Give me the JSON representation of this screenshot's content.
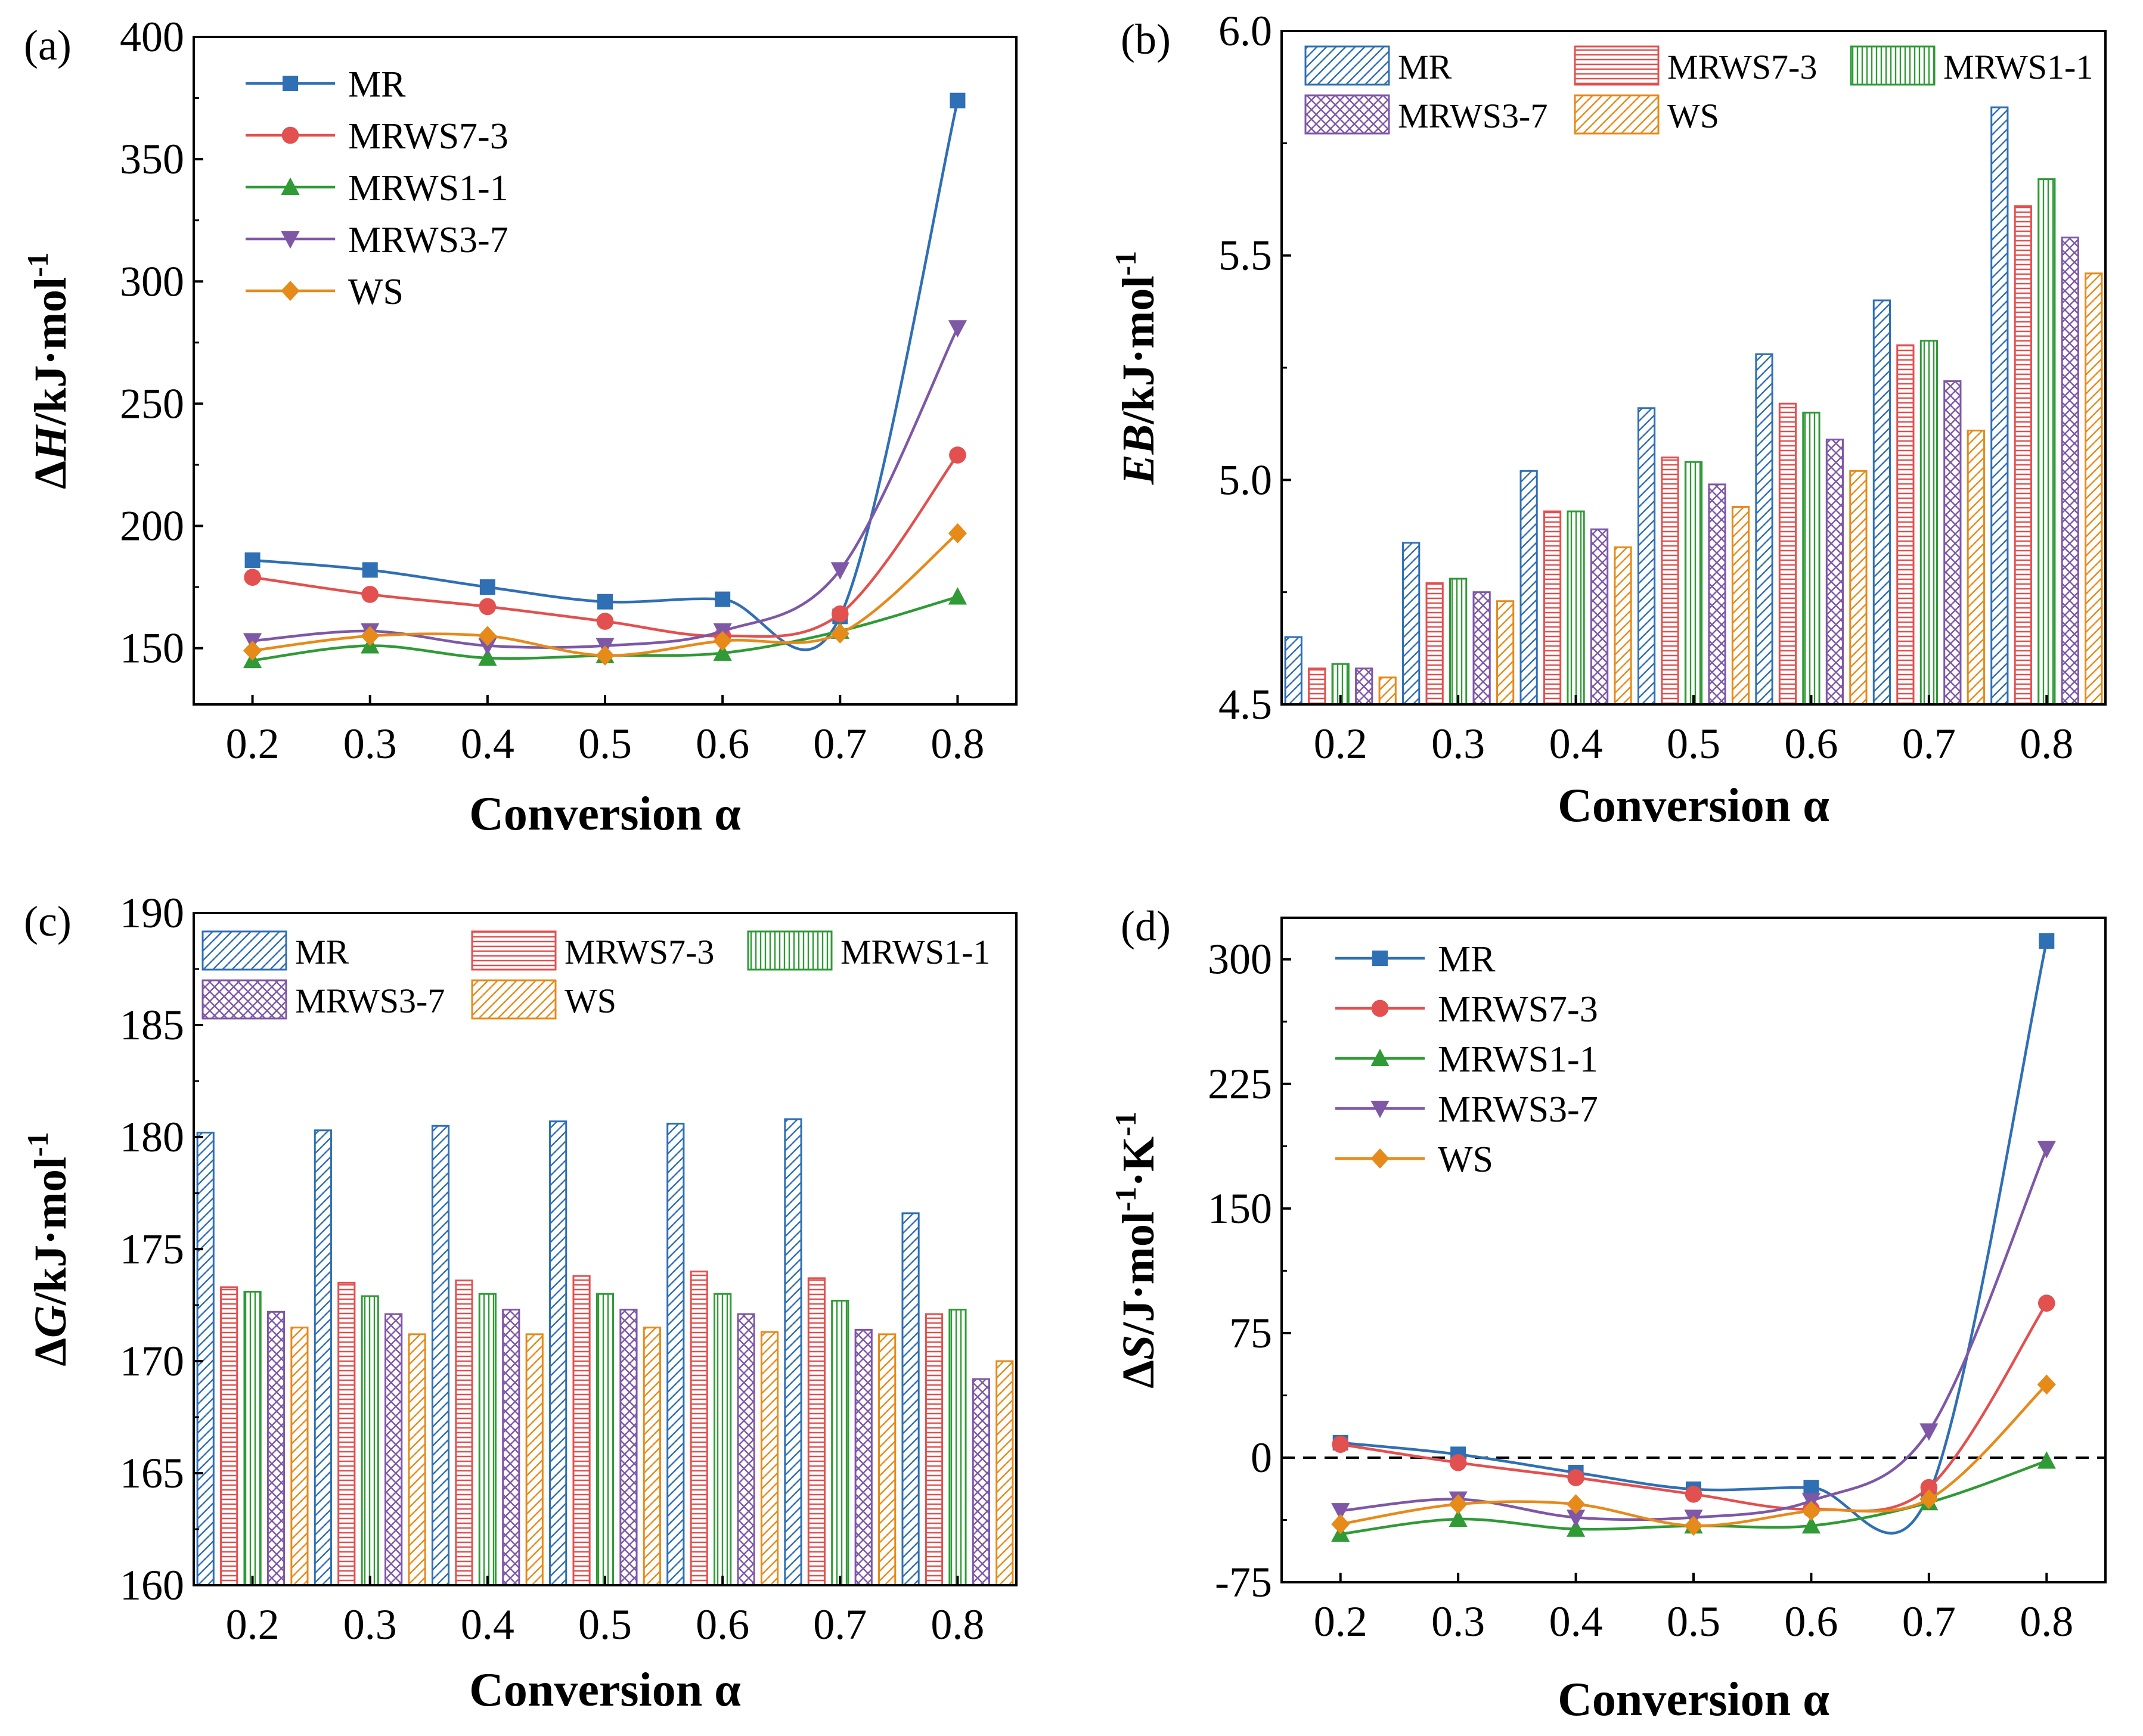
{
  "series_names": [
    "MR",
    "MRWS7-3",
    "MRWS1-1",
    "MRWS3-7",
    "WS"
  ],
  "colors": {
    "MR": "#2f6fb3",
    "MRWS7-3": "#e2504f",
    "MRWS1-1": "#2f9a36",
    "MRWS3-7": "#7e57a6",
    "WS": "#e68a1a"
  },
  "chart_data": [
    {
      "panel_label": "(a)",
      "type": "line",
      "title": "",
      "xlabel": "Conversion α",
      "ylabel": "ΔH/kJ·mol-1",
      "ylabel_parts": {
        "delta": "Δ",
        "var": "H",
        "unit": "/kJ·mol",
        "sup": "-1"
      },
      "x": [
        0.2,
        0.3,
        0.4,
        0.5,
        0.6,
        0.7,
        0.8
      ],
      "xticks": [
        "0.2",
        "0.3",
        "0.4",
        "0.5",
        "0.6",
        "0.7",
        "0.8"
      ],
      "ylim": [
        127,
        400
      ],
      "yticks": [
        150,
        200,
        250,
        300,
        350,
        400
      ],
      "yticklabels": [
        "150",
        "200",
        "250",
        "300",
        "350",
        "400"
      ],
      "legend_position": "top-left",
      "series": [
        {
          "name": "MR",
          "marker": "square",
          "values": [
            186,
            182,
            175,
            169,
            170,
            163,
            374
          ]
        },
        {
          "name": "MRWS7-3",
          "marker": "circle",
          "values": [
            179,
            172,
            167,
            161,
            155,
            164,
            229
          ]
        },
        {
          "name": "MRWS1-1",
          "marker": "triangle-up",
          "values": [
            145,
            151,
            146,
            147,
            148,
            157,
            171
          ]
        },
        {
          "name": "MRWS3-7",
          "marker": "triangle-down",
          "values": [
            153,
            157,
            151,
            151,
            157,
            182,
            281
          ]
        },
        {
          "name": "WS",
          "marker": "diamond",
          "values": [
            149,
            155,
            155,
            147,
            153,
            156,
            197
          ]
        }
      ]
    },
    {
      "panel_label": "(b)",
      "type": "bar",
      "title": "",
      "xlabel": "Conversion α",
      "ylabel": "EB/kJ·mol-1",
      "ylabel_parts": {
        "delta": "",
        "var": "EB",
        "unit": "/kJ·mol",
        "sup": "-1"
      },
      "categories": [
        "0.2",
        "0.3",
        "0.4",
        "0.5",
        "0.6",
        "0.7",
        "0.8"
      ],
      "ylim": [
        4.5,
        6.0
      ],
      "yticks": [
        4.5,
        5.0,
        5.5,
        6.0
      ],
      "yticklabels": [
        "4.5",
        "5.0",
        "5.5",
        "6.0"
      ],
      "legend_position": "top",
      "series": [
        {
          "name": "MR",
          "pattern": "diag",
          "values": [
            4.65,
            4.86,
            5.02,
            5.16,
            5.28,
            5.4,
            5.83
          ]
        },
        {
          "name": "MRWS7-3",
          "pattern": "horiz",
          "values": [
            4.58,
            4.77,
            4.93,
            5.05,
            5.17,
            5.3,
            5.61
          ]
        },
        {
          "name": "MRWS1-1",
          "pattern": "vert",
          "values": [
            4.59,
            4.78,
            4.93,
            5.04,
            5.15,
            5.31,
            5.67
          ]
        },
        {
          "name": "MRWS3-7",
          "pattern": "cross",
          "values": [
            4.58,
            4.75,
            4.89,
            4.99,
            5.09,
            5.22,
            5.54
          ]
        },
        {
          "name": "WS",
          "pattern": "diag",
          "values": [
            4.56,
            4.73,
            4.85,
            4.94,
            5.02,
            5.11,
            5.46
          ]
        }
      ]
    },
    {
      "panel_label": "(c)",
      "type": "bar",
      "title": "",
      "xlabel": "Conversion α",
      "ylabel": "ΔG/kJ·mol-1",
      "ylabel_parts": {
        "delta": "Δ",
        "var": "G",
        "unit": "/kJ·mol",
        "sup": "-1"
      },
      "categories": [
        "0.2",
        "0.3",
        "0.4",
        "0.5",
        "0.6",
        "0.7",
        "0.8"
      ],
      "ylim": [
        160,
        190
      ],
      "yticks": [
        160,
        165,
        170,
        175,
        180,
        185,
        190
      ],
      "yticklabels": [
        "160",
        "165",
        "170",
        "175",
        "180",
        "185",
        "190"
      ],
      "legend_position": "top",
      "series": [
        {
          "name": "MR",
          "pattern": "diag",
          "values": [
            180.2,
            180.3,
            180.5,
            180.7,
            180.6,
            180.8,
            176.6
          ]
        },
        {
          "name": "MRWS7-3",
          "pattern": "horiz",
          "values": [
            173.3,
            173.5,
            173.6,
            173.8,
            174.0,
            173.7,
            172.1
          ]
        },
        {
          "name": "MRWS1-1",
          "pattern": "vert",
          "values": [
            173.1,
            172.9,
            173.0,
            173.0,
            173.0,
            172.7,
            172.3
          ]
        },
        {
          "name": "MRWS3-7",
          "pattern": "cross",
          "values": [
            172.2,
            172.1,
            172.3,
            172.3,
            172.1,
            171.4,
            169.2
          ]
        },
        {
          "name": "WS",
          "pattern": "diag",
          "values": [
            171.5,
            171.2,
            171.2,
            171.5,
            171.3,
            171.2,
            170.0
          ]
        }
      ]
    },
    {
      "panel_label": "(d)",
      "type": "line",
      "title": "",
      "xlabel": "Conversion α",
      "ylabel": "ΔS/J·mol-1·K-1",
      "ylabel_parts": {
        "delta": "Δ",
        "var": "S",
        "unit": "/J·mol",
        "sup": "-1",
        "unit2": "·K",
        "sup2": "-1"
      },
      "x": [
        0.2,
        0.3,
        0.4,
        0.5,
        0.6,
        0.7,
        0.8
      ],
      "xticks": [
        "0.2",
        "0.3",
        "0.4",
        "0.5",
        "0.6",
        "0.7",
        "0.8"
      ],
      "ylim": [
        -75,
        325
      ],
      "yticks": [
        -75,
        0,
        75,
        150,
        225,
        300
      ],
      "yticklabels": [
        "-75",
        "0",
        "75",
        "150",
        "225",
        "300"
      ],
      "reference_line": 0,
      "legend_position": "top-left",
      "series": [
        {
          "name": "MR",
          "marker": "square",
          "values": [
            9,
            2,
            -9,
            -19,
            -18,
            -22,
            311
          ]
        },
        {
          "name": "MRWS7-3",
          "marker": "circle",
          "values": [
            8,
            -3,
            -12,
            -22,
            -31,
            -18,
            93
          ]
        },
        {
          "name": "MRWS1-1",
          "marker": "triangle-up",
          "values": [
            -46,
            -37,
            -43,
            -41,
            -41,
            -27,
            -2
          ]
        },
        {
          "name": "MRWS3-7",
          "marker": "triangle-down",
          "values": [
            -32,
            -25,
            -36,
            -36,
            -26,
            16,
            186
          ]
        },
        {
          "name": "WS",
          "marker": "diamond",
          "values": [
            -40,
            -28,
            -28,
            -41,
            -32,
            -25,
            44
          ]
        }
      ]
    }
  ]
}
